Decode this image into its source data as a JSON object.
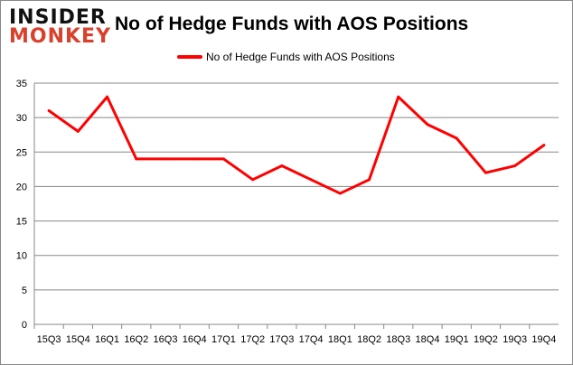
{
  "logo": {
    "line1": "INSIDER",
    "line2": "MONKEY"
  },
  "chart_data": {
    "type": "line",
    "title": "No of Hedge Funds with AOS Positions",
    "categories": [
      "15Q3",
      "15Q4",
      "16Q1",
      "16Q2",
      "16Q3",
      "16Q4",
      "17Q1",
      "17Q2",
      "17Q3",
      "17Q4",
      "18Q1",
      "18Q2",
      "18Q3",
      "18Q4",
      "19Q1",
      "19Q2",
      "19Q3",
      "19Q4"
    ],
    "series": [
      {
        "name": "No of Hedge Funds with AOS Positions",
        "color": "#ff0000",
        "values": [
          31,
          28,
          33,
          24,
          24,
          24,
          24,
          21,
          23,
          21,
          19,
          21,
          33,
          29,
          27,
          22,
          23,
          26
        ]
      }
    ],
    "ylim": [
      0,
      35
    ],
    "yticks": [
      0,
      5,
      10,
      15,
      20,
      25,
      30,
      35
    ],
    "grid": true,
    "legend": "top"
  }
}
